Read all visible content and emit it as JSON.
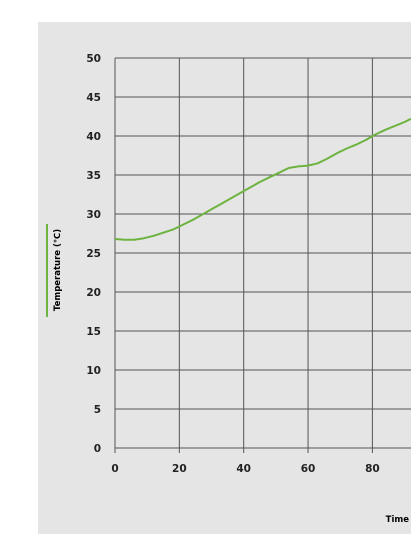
{
  "colors": {
    "panel_background": "#e5e5e5",
    "plot_background": "#e5e5e5",
    "grid": "#555555",
    "series_line": "#6db33f",
    "text": "#222222"
  },
  "chart_data": {
    "type": "line",
    "title": "",
    "xlabel": "Time",
    "ylabel": "Temperature (℃)",
    "xlim": [
      0,
      92
    ],
    "ylim": [
      0,
      50
    ],
    "x_ticks": [
      "0",
      "20",
      "40",
      "60",
      "80"
    ],
    "y_ticks": [
      "0",
      "5",
      "10",
      "15",
      "20",
      "25",
      "30",
      "35",
      "40",
      "45",
      "50"
    ],
    "grid": true,
    "legend": "left, vertical (colored bar beside y-axis label)",
    "series": [
      {
        "color": "#6db33f",
        "x": [
          0,
          3,
          6,
          9,
          12,
          15,
          18,
          21,
          24,
          27,
          30,
          33,
          36,
          39,
          42,
          45,
          48,
          51,
          54,
          57,
          60,
          63,
          66,
          69,
          72,
          75,
          78,
          81,
          84,
          87,
          90,
          92
        ],
        "y": [
          26.8,
          26.7,
          26.7,
          26.9,
          27.2,
          27.6,
          28.0,
          28.6,
          29.2,
          29.9,
          30.6,
          31.3,
          32.0,
          32.7,
          33.4,
          34.1,
          34.7,
          35.3,
          35.9,
          36.1,
          36.2,
          36.5,
          37.1,
          37.8,
          38.4,
          38.9,
          39.5,
          40.2,
          40.8,
          41.3,
          41.8,
          42.2
        ]
      }
    ]
  }
}
